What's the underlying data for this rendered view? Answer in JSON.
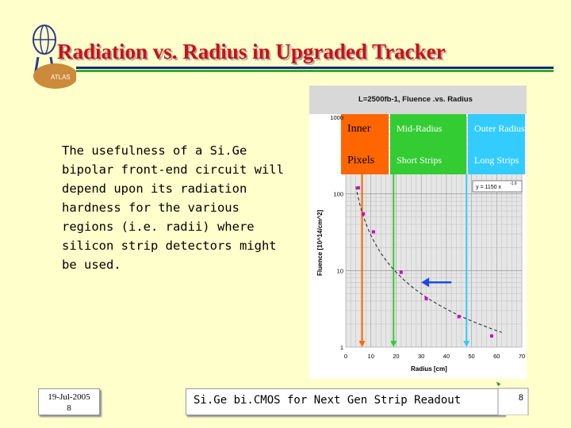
{
  "slide": {
    "title": "Radiation vs. Radius in Upgraded Tracker",
    "logo_text": "ATLAS",
    "body_text": "The usefulness of a Si.Ge bipolar front-end circuit will depend upon its radiation hardness for the various regions (i.e. radii) where silicon strip detectors might be used.",
    "footer_date": "19-Jul-2005",
    "footer_number": "8",
    "footer_center": "Si.Ge bi.CMOS for Next Gen Strip Readout",
    "page_number": "8"
  },
  "colors": {
    "background": "#ffffcc",
    "title": "#cc1111",
    "inner_region": "#ff6600",
    "mid_region": "#33cc33",
    "outer_region": "#33ccff",
    "points": "#cc00cc",
    "arrow": "#1a4adf"
  },
  "chart_data": {
    "type": "scatter",
    "title": "L=2500fb-1, Fluence .vs. Radius",
    "xlabel": "Radius [cm]",
    "ylabel": "Fluence [10^14/cm^2]",
    "xlim": [
      0,
      70
    ],
    "ylim": [
      1,
      1000
    ],
    "log_y": true,
    "x_ticks": [
      "0",
      "10",
      "20",
      "30",
      "40",
      "50",
      "60",
      "70"
    ],
    "y_ticks": [
      "1000",
      "100",
      "10",
      "1"
    ],
    "grid": true,
    "fit_label": "y = 1150 x^-1.6",
    "fit_equation_display": "y = 1150 x",
    "fit_exponent_display": "-1.6",
    "fit": {
      "coefficient": 1150,
      "exponent": -1.6
    },
    "points": [
      {
        "x": 5,
        "y": 120
      },
      {
        "x": 7,
        "y": 55
      },
      {
        "x": 11,
        "y": 32
      },
      {
        "x": 22,
        "y": 9.5
      },
      {
        "x": 32,
        "y": 4.3
      },
      {
        "x": 45,
        "y": 2.5
      },
      {
        "x": 58,
        "y": 1.4
      }
    ],
    "regions": [
      {
        "name": "Inner",
        "sub": "Pixels",
        "x_start": 0,
        "x_end": 20
      },
      {
        "name": "Mid-Radius",
        "sub": "Short Strips",
        "x_start": 20,
        "x_end": 50
      },
      {
        "name": "Outer Radius",
        "sub": "Long Strips",
        "x_start": 50,
        "x_end": 70
      }
    ],
    "boundaries": [
      {
        "x": 6.5,
        "color": "orange"
      },
      {
        "x": 19,
        "color": "green"
      },
      {
        "x": 48,
        "color": "blue"
      }
    ],
    "arrow": {
      "x_from": 42,
      "x_to": 30,
      "y": 7
    }
  }
}
